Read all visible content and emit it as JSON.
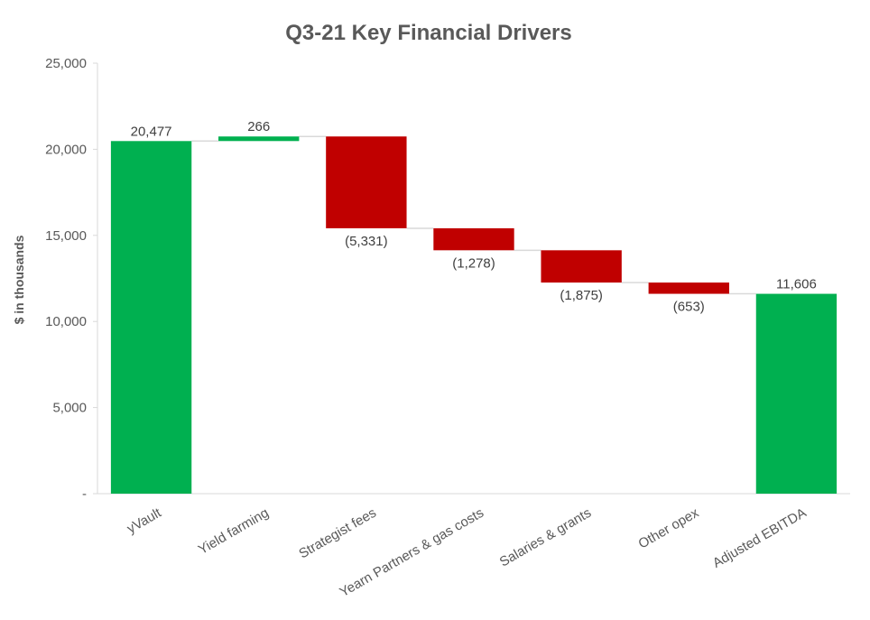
{
  "chart_data": {
    "type": "bar",
    "subtype": "waterfall",
    "title": "Q3-21 Key Financial Drivers",
    "xlabel": "",
    "ylabel": "$ in thousands",
    "ylim": [
      0,
      25000
    ],
    "y_ticks": [
      0,
      5000,
      10000,
      15000,
      20000,
      25000
    ],
    "y_tick_labels": [
      "-",
      "5,000",
      "10,000",
      "15,000",
      "20,000",
      "25,000"
    ],
    "grid": false,
    "legend": "none",
    "colors": {
      "increase": "#00b050",
      "decrease": "#c00000",
      "total": "#00b050",
      "connector": "#d9d9d9"
    },
    "categories": [
      "yVault",
      "Yield farming",
      "Strategist fees",
      "Yearn Partners & gas costs",
      "Salaries & grants",
      "Other opex",
      "Adjusted EBITDA"
    ],
    "values": [
      20477,
      266,
      -5331,
      -1278,
      -1875,
      -653,
      11606
    ],
    "kinds": [
      "total",
      "increase",
      "decrease",
      "decrease",
      "decrease",
      "decrease",
      "total"
    ],
    "data_labels": [
      "20,477",
      "266",
      "(5,331)",
      "(1,278)",
      "(1,875)",
      "(653)",
      "11,606"
    ]
  }
}
